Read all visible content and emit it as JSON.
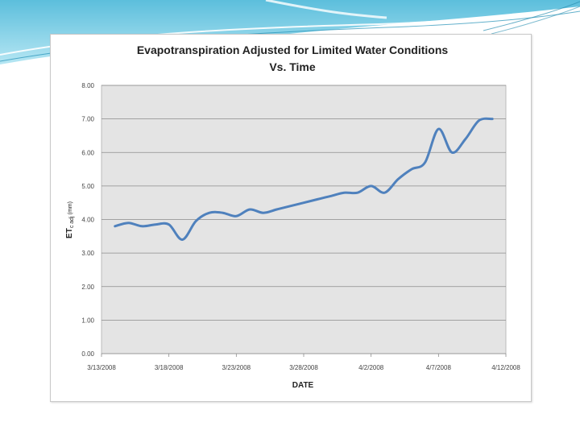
{
  "chart_data": {
    "type": "line",
    "title_line1": "Evapotranspiration Adjusted for Limited Water Conditions",
    "title_line2": "Vs. Time",
    "xlabel": "DATE",
    "ylabel_main": "ET",
    "ylabel_sub": "c adj",
    "ylabel_unit": "(mm)",
    "ylim": [
      0,
      8
    ],
    "y_ticks": [
      "0.00",
      "1.00",
      "2.00",
      "3.00",
      "4.00",
      "5.00",
      "6.00",
      "7.00",
      "8.00"
    ],
    "x_ticks": [
      "3/13/2008",
      "3/18/2008",
      "3/23/2008",
      "3/28/2008",
      "4/2/2008",
      "4/7/2008",
      "4/12/2008"
    ],
    "x_range_days": [
      0,
      30
    ],
    "series": [
      {
        "name": "ETc adj",
        "color": "#4f81bd",
        "x": [
          1,
          2,
          3,
          4,
          5,
          6,
          7,
          8,
          9,
          10,
          11,
          12,
          13,
          14,
          15,
          16,
          17,
          18,
          19,
          20,
          21,
          22,
          23,
          24,
          25,
          26,
          27,
          28,
          29
        ],
        "y": [
          3.8,
          3.9,
          3.8,
          3.85,
          3.85,
          3.4,
          3.95,
          4.2,
          4.2,
          4.1,
          4.3,
          4.2,
          4.3,
          4.4,
          4.5,
          4.6,
          4.7,
          4.8,
          4.8,
          5.0,
          4.8,
          5.2,
          5.5,
          5.7,
          6.7,
          6.0,
          6.4,
          6.95,
          7.0
        ]
      }
    ]
  }
}
